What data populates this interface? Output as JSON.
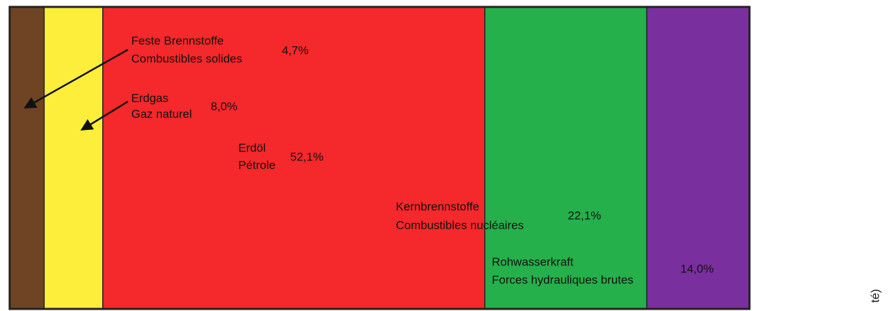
{
  "chart_data": {
    "type": "stacked-bar",
    "series": [
      {
        "label": [
          "Feste Brennstoffe",
          "Combustibles solides"
        ],
        "color": "#6e4424",
        "values": [
          4.7
        ],
        "value_labels": [
          "4,7%"
        ]
      },
      {
        "label": [
          "Erdgas",
          "Gaz naturel"
        ],
        "color": "#fcee3a",
        "values": [
          8.0
        ],
        "value_labels": [
          "8,0%"
        ]
      },
      {
        "label": [
          "Erdöl",
          "Pétrole"
        ],
        "color": "#f5282b",
        "values": [
          52.1
        ],
        "value_labels": [
          "52,1%"
        ]
      },
      {
        "label": [
          "Kernbrennstoffe",
          "Combustibles nucléaires"
        ],
        "color": "#25b04b",
        "values": [
          22.1
        ],
        "value_labels": [
          "22,1%"
        ]
      },
      {
        "label": [
          "Rohwasserkraft",
          "Forces hydrauliques brutes"
        ],
        "color": "#7a2f9e",
        "values": [
          14.0
        ],
        "value_labels": [
          "14,0%"
        ]
      }
    ],
    "annotation": "té)"
  }
}
